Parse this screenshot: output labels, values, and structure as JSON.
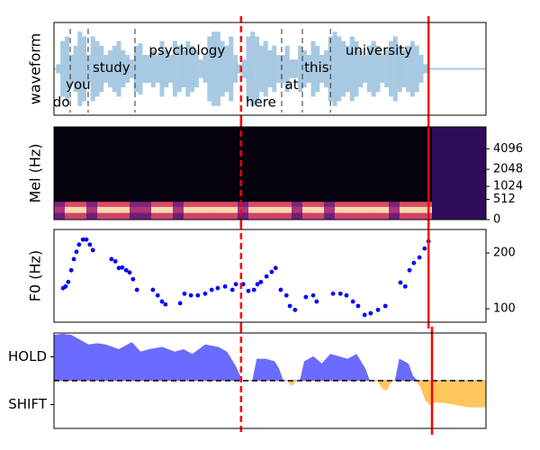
{
  "chart_data": [
    {
      "type": "waveform",
      "ylabel": "waveform",
      "color": "#a8c9e2",
      "xlim": [
        0,
        100
      ],
      "ylim": [
        -1,
        1
      ],
      "x": [
        0,
        1,
        2,
        3,
        4,
        5,
        6,
        7,
        8,
        9,
        10,
        11,
        12,
        13,
        14,
        15,
        16,
        17,
        18,
        19,
        20,
        21,
        22,
        23,
        24,
        25,
        26,
        27,
        28,
        29,
        30,
        31,
        32,
        33,
        34,
        35,
        36,
        37,
        38,
        39,
        40,
        41,
        42,
        43,
        44,
        45,
        46,
        47,
        48,
        49,
        50,
        51,
        52,
        53,
        54,
        55,
        56,
        57,
        58,
        59,
        60,
        61,
        62,
        63,
        64,
        65,
        66,
        67,
        68,
        69,
        70,
        71,
        72,
        73,
        74,
        75,
        76,
        77,
        78,
        79,
        80,
        81,
        82,
        83,
        84,
        85,
        86,
        87,
        88,
        89,
        90,
        91,
        92,
        93,
        94,
        95,
        96,
        97,
        98,
        99,
        100
      ],
      "values": [
        0.02,
        0.1,
        0.6,
        0.7,
        0.3,
        0.5,
        0.8,
        0.7,
        0.3,
        0.7,
        0.6,
        0.5,
        0.3,
        0.4,
        0.5,
        0.6,
        0.4,
        0.3,
        0.2,
        0.5,
        0.55,
        0.3,
        0.3,
        0.4,
        0.3,
        0.6,
        0.4,
        0.3,
        0.6,
        0.5,
        0.4,
        0.6,
        0.5,
        0.4,
        0.2,
        0.3,
        0.7,
        0.8,
        0.8,
        0.6,
        0.5,
        0.7,
        0.3,
        0.1,
        0.2,
        0.7,
        0.8,
        0.7,
        0.5,
        0.6,
        0.4,
        0.5,
        0.3,
        0.3,
        0.5,
        0.2,
        0.2,
        0.5,
        0.4,
        0.3,
        0.6,
        0.5,
        0.3,
        0.4,
        0.7,
        0.8,
        0.7,
        0.6,
        0.5,
        0.7,
        0.6,
        0.4,
        0.3,
        0.5,
        0.6,
        0.5,
        0.3,
        0.4,
        0.6,
        0.7,
        0.5,
        0.4,
        0.5,
        0.6,
        0.5,
        0.3,
        0.1,
        0.02,
        0.02,
        0.02,
        0.02,
        0.02,
        0.02,
        0.02,
        0.02,
        0.02,
        0.02,
        0.02,
        0.02,
        0.02,
        0.02
      ],
      "annotations": [
        {
          "text": "do",
          "x": 1.7,
          "y": -0.73
        },
        {
          "text": "you",
          "x": 5.6,
          "y": -0.35
        },
        {
          "text": "study",
          "x": 13.3,
          "y": 0.02
        },
        {
          "text": "psychology",
          "x": 30.8,
          "y": 0.39
        },
        {
          "text": "here",
          "x": 47.9,
          "y": -0.73
        },
        {
          "text": "at",
          "x": 55,
          "y": -0.35
        },
        {
          "text": "this",
          "x": 60.8,
          "y": 0.02
        },
        {
          "text": "university",
          "x": 75.2,
          "y": 0.39
        }
      ],
      "vlines": [
        {
          "x": 3.75,
          "color": "#333333",
          "style": "dashed"
        },
        {
          "x": 7.9,
          "color": "#333333",
          "style": "dashed"
        },
        {
          "x": 18.75,
          "color": "#333333",
          "style": "dashed"
        },
        {
          "x": 52.7,
          "color": "#333333",
          "style": "dashed"
        },
        {
          "x": 57.5,
          "color": "#333333",
          "style": "dashed"
        },
        {
          "x": 64,
          "color": "#333333",
          "style": "dashed"
        },
        {
          "x": 43.3,
          "color": "red",
          "style": "dashed"
        },
        {
          "x": 86.7,
          "color": "red",
          "style": "solid"
        }
      ]
    },
    {
      "type": "heatmap",
      "ylabel": "Mel (Hz)",
      "yscale": "mel",
      "ytick_side": "right",
      "xlim": [
        0,
        100
      ],
      "ylim": [
        0,
        8000
      ],
      "yticks": [
        0,
        512,
        1024,
        2048,
        4096
      ],
      "xbins": [
        0,
        2.5,
        5,
        7.5,
        10,
        12.5,
        15,
        17.5,
        20,
        22.5,
        25,
        27.5,
        30,
        32.5,
        35,
        37.5,
        40,
        42.5,
        45,
        47.5,
        50,
        52.5,
        55,
        57.5,
        60,
        62.5,
        65,
        67.5,
        70,
        72.5,
        75,
        77.5,
        80,
        82.5,
        85,
        87.5,
        90,
        92.5,
        95,
        97.5,
        100
      ],
      "ybins": [
        0,
        150,
        300,
        450,
        8000
      ],
      "z": [
        [
          0.4,
          0.7,
          0.7,
          0.4,
          0.7,
          0.7,
          0.7,
          0.4,
          0.4,
          0.7,
          0.7,
          0.4,
          0.7,
          0.7,
          0.7,
          0.7,
          0.7,
          0.4,
          0.7,
          0.7,
          0.7,
          0.7,
          0.4,
          0.7,
          0.7,
          0.4,
          0.7,
          0.7,
          0.7,
          0.7,
          0.7,
          0.4,
          0.7,
          0.7,
          0.7,
          0.2,
          0.2,
          0.2,
          0.2,
          0.2
        ],
        [
          0.6,
          0.95,
          0.95,
          0.6,
          0.95,
          0.95,
          0.95,
          0.6,
          0.6,
          0.95,
          0.95,
          0.6,
          0.95,
          0.95,
          0.95,
          0.95,
          0.95,
          0.6,
          0.95,
          0.95,
          0.95,
          0.95,
          0.6,
          0.95,
          0.95,
          0.6,
          0.95,
          0.95,
          0.95,
          0.95,
          0.95,
          0.6,
          0.95,
          0.95,
          0.95,
          0.2,
          0.2,
          0.2,
          0.2,
          0.2
        ],
        [
          0.45,
          0.75,
          0.75,
          0.45,
          0.75,
          0.75,
          0.75,
          0.45,
          0.45,
          0.75,
          0.75,
          0.45,
          0.75,
          0.75,
          0.75,
          0.75,
          0.75,
          0.45,
          0.75,
          0.75,
          0.75,
          0.75,
          0.45,
          0.75,
          0.75,
          0.45,
          0.75,
          0.75,
          0.75,
          0.75,
          0.75,
          0.45,
          0.75,
          0.75,
          0.75,
          0.2,
          0.2,
          0.2,
          0.2,
          0.2
        ],
        [
          0.02,
          0.02,
          0.02,
          0.02,
          0.02,
          0.02,
          0.02,
          0.02,
          0.02,
          0.02,
          0.02,
          0.02,
          0.02,
          0.02,
          0.02,
          0.02,
          0.02,
          0.02,
          0.02,
          0.02,
          0.02,
          0.02,
          0.02,
          0.02,
          0.02,
          0.02,
          0.02,
          0.02,
          0.02,
          0.02,
          0.02,
          0.02,
          0.02,
          0.02,
          0.02,
          0.2,
          0.2,
          0.2,
          0.2,
          0.2
        ]
      ],
      "vlines": [
        {
          "x": 43.3,
          "color": "red",
          "style": "dashed"
        },
        {
          "x": 86.7,
          "color": "red",
          "style": "solid"
        }
      ]
    },
    {
      "type": "scatter",
      "ylabel": "F0 (Hz)",
      "ytick_side": "right",
      "color": "blue",
      "xlim": [
        0,
        100
      ],
      "ylim": [
        76,
        242
      ],
      "yticks": [
        100,
        200
      ],
      "x": [
        2.1,
        2.7,
        3.3,
        4.0,
        4.6,
        5.2,
        5.8,
        6.7,
        7.5,
        8.3,
        9.0,
        13.3,
        14.2,
        15.0,
        15.8,
        16.7,
        17.5,
        18.3,
        19.2,
        22.9,
        24.0,
        25.0,
        25.8,
        29.2,
        30.2,
        31.7,
        33.3,
        35.0,
        36.5,
        37.9,
        39.6,
        41.3,
        42.1,
        43.8,
        45.0,
        46.3,
        47.1,
        47.9,
        49.2,
        50.4,
        51.3,
        52.5,
        53.8,
        54.6,
        55.8,
        58.3,
        60.0,
        60.8,
        64.6,
        66.3,
        67.7,
        69.2,
        70.4,
        71.9,
        73.3,
        75.0,
        76.7,
        80.2,
        81.3,
        82.3,
        83.3,
        84.6,
        85.8,
        86.7
      ],
      "values": [
        137,
        140,
        148,
        169,
        189,
        202,
        215,
        224,
        224,
        215,
        205,
        189,
        185,
        173,
        174,
        169,
        165,
        153,
        134,
        134,
        124,
        113,
        108,
        110,
        127,
        124,
        124,
        127,
        134,
        137,
        140,
        134,
        144,
        144,
        132,
        134,
        144,
        148,
        158,
        166,
        173,
        134,
        124,
        105,
        98,
        121,
        124,
        113,
        127,
        127,
        124,
        113,
        105,
        89,
        92,
        98,
        105,
        147,
        140,
        169,
        182,
        192,
        208,
        221
      ],
      "vlines": [
        {
          "x": 43.3,
          "color": "red",
          "style": "dashed"
        },
        {
          "x": 86.7,
          "color": "red",
          "style": "solid"
        }
      ]
    },
    {
      "type": "area",
      "colors": {
        "above": "#6b6bff",
        "below": "#ffc65c"
      },
      "xlim": [
        0,
        100
      ],
      "ylim": [
        -2,
        2
      ],
      "yticks": [
        {
          "value": 1,
          "label": "HOLD"
        },
        {
          "value": -1,
          "label": "SHIFT"
        }
      ],
      "x": [
        0,
        2,
        4,
        6,
        8,
        10,
        12,
        15,
        18,
        20,
        22,
        25,
        28,
        30,
        32,
        35,
        38,
        40,
        42,
        43.5,
        46,
        47,
        49,
        51,
        52,
        53,
        54,
        55,
        56,
        57,
        58,
        60,
        62,
        64,
        66,
        68,
        70,
        72,
        73,
        75,
        76,
        77,
        78,
        79,
        80,
        82,
        83,
        84,
        85,
        86,
        87,
        88,
        90,
        93,
        96,
        100
      ],
      "values": [
        1.9,
        1.95,
        1.9,
        1.7,
        1.5,
        1.55,
        1.5,
        1.3,
        1.6,
        1.2,
        1.3,
        1.4,
        1.2,
        1.3,
        1.1,
        1.5,
        1.4,
        1.2,
        0.6,
        0,
        0,
        0.9,
        0.9,
        0.8,
        0.5,
        0,
        0,
        -0.2,
        0,
        0,
        0.8,
        1.0,
        0.7,
        1.1,
        1.0,
        0.9,
        1.1,
        0.5,
        0,
        0,
        -0.3,
        -0.4,
        0,
        0,
        0.9,
        0.7,
        0.2,
        0,
        -0.3,
        -0.8,
        -1.0,
        -0.9,
        -0.9,
        -1.0,
        -1.1,
        -1.1
      ],
      "hline": {
        "y": 0,
        "color": "black",
        "style": "dashed"
      },
      "vlines": [
        {
          "x": 43.3,
          "color": "red",
          "style": "dashed"
        },
        {
          "x": 87.5,
          "color": "red",
          "style": "solid"
        }
      ]
    }
  ]
}
